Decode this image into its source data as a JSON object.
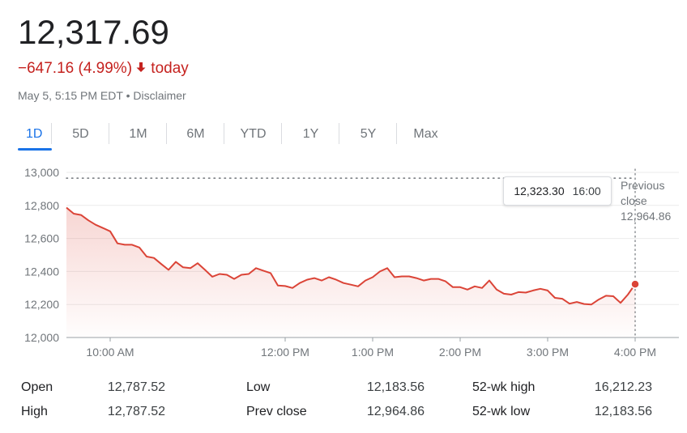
{
  "header": {
    "price": "12,317.69",
    "change": "−647.16 (4.99%)",
    "change_arrow": "🡓",
    "change_suffix": "today",
    "date": "May 5, 5:15 PM EDT",
    "separator": "•",
    "disclaimer": "Disclaimer",
    "negative_color": "#c5221f"
  },
  "tabs": [
    {
      "label": "1D",
      "active": true
    },
    {
      "label": "5D",
      "active": false
    },
    {
      "label": "1M",
      "active": false
    },
    {
      "label": "6M",
      "active": false
    },
    {
      "label": "YTD",
      "active": false
    },
    {
      "label": "1Y",
      "active": false
    },
    {
      "label": "5Y",
      "active": false
    },
    {
      "label": "Max",
      "active": false
    }
  ],
  "tooltip": {
    "value": "12,323.30",
    "time": "16:00"
  },
  "previous_close": {
    "label_line1": "Previous",
    "label_line2": "close",
    "value": "12,964.86"
  },
  "chart_data": {
    "type": "area",
    "line_color": "#db4437",
    "grid": true,
    "ylim": [
      12000,
      13000
    ],
    "y_ticks": [
      12000,
      12200,
      12400,
      12600,
      12800,
      13000
    ],
    "y_tick_labels": [
      "12,000",
      "12,200",
      "12,400",
      "12,600",
      "12,800",
      "13,000"
    ],
    "xlim": [
      "9:30",
      "16:30"
    ],
    "x_ticks": [
      {
        "x": "10:00",
        "label": "10:00 AM"
      },
      {
        "x": "12:00",
        "label": "12:00 PM"
      },
      {
        "x": "13:00",
        "label": "1:00 PM"
      },
      {
        "x": "14:00",
        "label": "2:00 PM"
      },
      {
        "x": "15:00",
        "label": "3:00 PM"
      },
      {
        "x": "16:00",
        "label": "4:00 PM"
      }
    ],
    "previous_close": 12964.86,
    "series": [
      {
        "x": [
          "9:30",
          "9:35",
          "9:40",
          "9:45",
          "9:50",
          "9:55",
          "10:00",
          "10:05",
          "10:10",
          "10:15",
          "10:20",
          "10:25",
          "10:30",
          "10:35",
          "10:40",
          "10:45",
          "10:50",
          "10:55",
          "11:00",
          "11:05",
          "11:10",
          "11:15",
          "11:20",
          "11:25",
          "11:30",
          "11:35",
          "11:40",
          "11:45",
          "11:50",
          "11:55",
          "12:00",
          "12:05",
          "12:10",
          "12:15",
          "12:20",
          "12:25",
          "12:30",
          "12:35",
          "12:40",
          "12:45",
          "12:50",
          "12:55",
          "13:00",
          "13:05",
          "13:10",
          "13:15",
          "13:20",
          "13:25",
          "13:30",
          "13:35",
          "13:40",
          "13:45",
          "13:50",
          "13:55",
          "14:00",
          "14:05",
          "14:10",
          "14:15",
          "14:20",
          "14:25",
          "14:30",
          "14:35",
          "14:40",
          "14:45",
          "14:50",
          "14:55",
          "15:00",
          "15:05",
          "15:10",
          "15:15",
          "15:20",
          "15:25",
          "15:30",
          "15:35",
          "15:40",
          "15:45",
          "15:50",
          "15:55",
          "16:00"
        ],
        "values": [
          12787,
          12750,
          12742,
          12710,
          12683,
          12663,
          12643,
          12570,
          12562,
          12562,
          12545,
          12490,
          12482,
          12445,
          12410,
          12458,
          12425,
          12420,
          12450,
          12410,
          12368,
          12385,
          12380,
          12355,
          12380,
          12385,
          12420,
          12405,
          12390,
          12315,
          12312,
          12300,
          12330,
          12350,
          12360,
          12345,
          12365,
          12350,
          12330,
          12320,
          12310,
          12345,
          12365,
          12400,
          12420,
          12365,
          12370,
          12370,
          12360,
          12345,
          12355,
          12355,
          12340,
          12305,
          12305,
          12290,
          12310,
          12300,
          12345,
          12290,
          12265,
          12260,
          12275,
          12272,
          12285,
          12295,
          12285,
          12240,
          12235,
          12205,
          12215,
          12203,
          12200,
          12230,
          12253,
          12250,
          12210,
          12260,
          12323
        ]
      }
    ]
  },
  "stats": [
    {
      "label": "Open",
      "value": "12,787.52"
    },
    {
      "label": "High",
      "value": "12,787.52"
    },
    {
      "label": "Low",
      "value": "12,183.56"
    },
    {
      "label": "Prev close",
      "value": "12,964.86"
    },
    {
      "label": "52-wk high",
      "value": "16,212.23"
    },
    {
      "label": "52-wk low",
      "value": "12,183.56"
    }
  ]
}
